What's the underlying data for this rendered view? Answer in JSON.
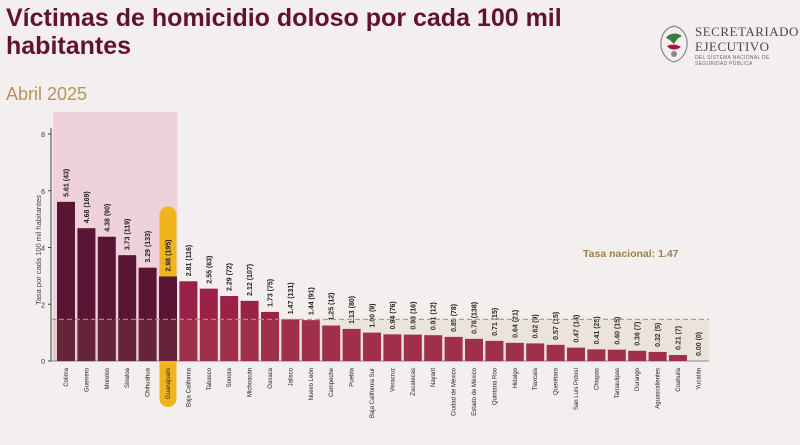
{
  "header": {
    "title": "Víctimas de homicidio doloso por cada 100 mil habitantes",
    "subtitle": "Abril 2025"
  },
  "logo": {
    "line1": "SECRETARIADO",
    "line2": "EJECUTIVO",
    "line3": "DEL SISTEMA NACIONAL DE SEGURIDAD PÚBLICA"
  },
  "colors": {
    "dark_bar": "#5a1535",
    "bar": "#9c2148",
    "highlight_bg": "#efd1dc",
    "guanajuato_tag": "#f0b41c",
    "national_line": "#b89660",
    "national_label": "#a0804c"
  },
  "chart_data": {
    "type": "bar",
    "ylabel": "Tasa por cada 100 mil habitantes",
    "ylim": [
      0,
      8
    ],
    "yticks": [
      0,
      2,
      4,
      6,
      8
    ],
    "grid": false,
    "national_rate": 1.47,
    "national_label": "Tasa nacional: 1.47",
    "highlighted_group": [
      "Colima",
      "Guerrero",
      "Morelos",
      "Sinaloa",
      "Chihuahua",
      "Guanajuato"
    ],
    "tagged_category": "Guanajuato",
    "categories": [
      "Colima",
      "Guerrero",
      "Morelos",
      "Sinaloa",
      "Chihuahua",
      "Guanajuato",
      "Baja California",
      "Tabasco",
      "Sonora",
      "Michoacán",
      "Oaxaca",
      "Jalisco",
      "Nuevo León",
      "Campeche",
      "Puebla",
      "Baja California Sur",
      "Veracruz",
      "Zacatecas",
      "Nayarit",
      "Ciudad de México",
      "Estado de México",
      "Quintana Roo",
      "Hidalgo",
      "Tlaxcala",
      "Querétaro",
      "San Luis Potosí",
      "Chiapas",
      "Tamaulipas",
      "Durango",
      "Aguascalientes",
      "Coahuila",
      "Yucatán"
    ],
    "values": [
      5.61,
      4.68,
      4.38,
      3.73,
      3.29,
      2.98,
      2.81,
      2.55,
      2.29,
      2.12,
      1.73,
      1.47,
      1.44,
      1.25,
      1.13,
      1.0,
      0.94,
      0.93,
      0.91,
      0.85,
      0.78,
      0.71,
      0.64,
      0.62,
      0.57,
      0.47,
      0.41,
      0.4,
      0.36,
      0.32,
      0.21,
      0.0
    ],
    "labels": [
      "5.61 (43)",
      "4.68 (169)",
      "4.38 (90)",
      "3.73 (119)",
      "3.29 (133)",
      "2.98 (195)",
      "2.81 (116)",
      "2.55 (63)",
      "2.29 (72)",
      "2.12 (107)",
      "1.73 (75)",
      "1.47 (131)",
      "1.44 (91)",
      "1.25 (12)",
      "1.13 (80)",
      "1.00 (9)",
      "0.94 (76)",
      "0.93 (16)",
      "0.91 (12)",
      "0.85 (78)",
      "0.78 (138)",
      "0.71 (15)",
      "0.64 (21)",
      "0.62 (9)",
      "0.57 (15)",
      "0.47 (14)",
      "0.41 (25)",
      "0.40 (15)",
      "0.36 (7)",
      "0.32 (5)",
      "0.21 (7)",
      "0.00 (0)"
    ]
  }
}
